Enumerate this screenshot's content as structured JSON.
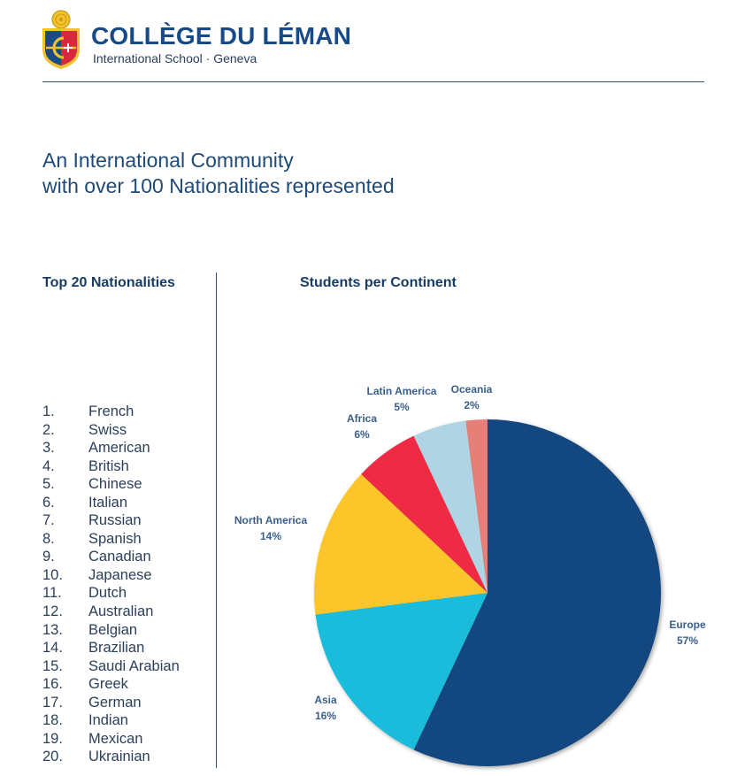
{
  "header": {
    "school_name": "COLLÈGE DU LÉMAN",
    "subtitle": "International School · Geneva",
    "crest_icon": "school-crest-icon"
  },
  "headline": {
    "line1": "An International Community",
    "line2": "with over 100 Nationalities represented"
  },
  "nationalities": {
    "title": "Top 20 Nationalities",
    "items": [
      {
        "rank": "1.",
        "name": "French"
      },
      {
        "rank": "2.",
        "name": "Swiss"
      },
      {
        "rank": "3.",
        "name": "American"
      },
      {
        "rank": "4.",
        "name": "British"
      },
      {
        "rank": "5.",
        "name": "Chinese"
      },
      {
        "rank": "6.",
        "name": "Italian"
      },
      {
        "rank": "7.",
        "name": "Russian"
      },
      {
        "rank": "8.",
        "name": "Spanish"
      },
      {
        "rank": "9.",
        "name": "Canadian"
      },
      {
        "rank": "10.",
        "name": "Japanese"
      },
      {
        "rank": "11.",
        "name": "Dutch"
      },
      {
        "rank": "12.",
        "name": "Australian"
      },
      {
        "rank": "13.",
        "name": "Belgian"
      },
      {
        "rank": "14.",
        "name": "Brazilian"
      },
      {
        "rank": "15.",
        "name": "Saudi Arabian"
      },
      {
        "rank": "16.",
        "name": "Greek"
      },
      {
        "rank": "17.",
        "name": "German"
      },
      {
        "rank": "18.",
        "name": "Indian"
      },
      {
        "rank": "19.",
        "name": "Mexican"
      },
      {
        "rank": "20.",
        "name": "Ukrainian"
      }
    ]
  },
  "chart_data": {
    "type": "pie",
    "title": "Students per Continent",
    "categories": [
      "Europe",
      "Asia",
      "North America",
      "Africa",
      "Latin America",
      "Oceania"
    ],
    "values": [
      57,
      16,
      14,
      6,
      5,
      2
    ],
    "labels": [
      "57%",
      "16%",
      "14%",
      "6%",
      "5%",
      "2%"
    ],
    "colors": [
      "#12477f",
      "#1bbcdb",
      "#fcc62a",
      "#ee2a45",
      "#b0d4e3",
      "#e57f78"
    ],
    "start": "12 o'clock",
    "direction": "clockwise"
  }
}
